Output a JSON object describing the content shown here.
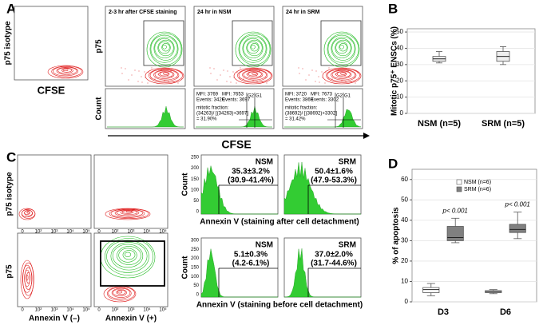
{
  "panels": {
    "A": {
      "label": "A",
      "isotype_ylabel": "p75 isotype",
      "isotype_xlabel": "CFSE",
      "ylabel_top": "p75",
      "ylabel_bottom": "Count",
      "gates": [
        "G2",
        "G1"
      ],
      "xlabel": "CFSE",
      "plots": [
        {
          "title": "2-3 hr after CFSE staining"
        },
        {
          "title": "24 hr in NSM",
          "stats": [
            "MFI: 3769",
            "Events: 3420",
            "MFI: 7653",
            "Events: 3697"
          ],
          "fraction": [
            "mitotic fraction:",
            "(34263)/ [(34263)+3697]",
            "= 31.90%"
          ]
        },
        {
          "title": "24 hr in SRM",
          "stats": [
            "MFI: 3720",
            "Events: 3869",
            "MFI: 7673",
            "Events: 3302"
          ],
          "fraction": [
            "mitotic fraction:",
            "(38692)/ [(38692)+3302]",
            "= 31.42%"
          ]
        }
      ]
    },
    "C": {
      "label": "C",
      "row_labels": [
        "p75 isotype",
        "p75"
      ],
      "col_labels": [
        "Annexin V (–)",
        "Annexin V (+)"
      ],
      "flow_ticks": [
        "0",
        "10²",
        "10³",
        "10⁴",
        "10⁵"
      ],
      "hist_ylabel": "Count",
      "hist_rows": [
        {
          "xlabel": "Annexin V (staining after cell detachment)",
          "yticks": [
            "250",
            "200",
            "150",
            "100",
            "50",
            "0"
          ],
          "cells": [
            {
              "name": "NSM",
              "mean": "35.3±3.2%",
              "range": "(30.9-41.4%)"
            },
            {
              "name": "SRM",
              "mean": "50.4±1.6%",
              "range": "(47.9-53.3%)"
            }
          ]
        },
        {
          "xlabel": "Annexin V (staining before cell detachment)",
          "yticks": [
            "300",
            "250",
            "200",
            "150",
            "100",
            "50",
            "0"
          ],
          "cells": [
            {
              "name": "NSM",
              "mean": "5.1±0.3%",
              "range": "(4.2-6.1%)"
            },
            {
              "name": "SRM",
              "mean": "37.0±2.0%",
              "range": "(31.7-44.6%)"
            }
          ]
        }
      ]
    }
  },
  "chart_data": [
    {
      "type": "box",
      "label": "B",
      "ylabel": "Mitotic p75⁺ ENSCs (%)",
      "categories": [
        "NSM (n=5)",
        "SRM (n=5)"
      ],
      "series": [
        {
          "color": "#eeeeee",
          "min": [
            31,
            30
          ],
          "q1": [
            32,
            32
          ],
          "median": [
            33.5,
            35
          ],
          "q3": [
            35,
            38
          ],
          "max": [
            38,
            41
          ]
        }
      ],
      "ylim": [
        0,
        52
      ],
      "yticks": [
        0,
        10,
        20,
        30,
        40,
        50
      ],
      "grid": true
    },
    {
      "type": "box",
      "label": "D",
      "ylabel": "% of apoptosis",
      "categories": [
        "D3",
        "D6"
      ],
      "series": [
        {
          "name": "NSM (n=6)",
          "color": "#ffffff",
          "min": [
            3,
            4
          ],
          "q1": [
            4.5,
            4.5
          ],
          "median": [
            6,
            5
          ],
          "q3": [
            7,
            5.5
          ],
          "max": [
            9,
            6
          ]
        },
        {
          "name": "SRM (n=6)",
          "color": "#808080",
          "min": [
            29,
            31
          ],
          "q1": [
            30,
            34
          ],
          "median": [
            31.5,
            35.5
          ],
          "q3": [
            37,
            38
          ],
          "max": [
            41,
            44
          ]
        }
      ],
      "annotations": [
        "p< 0.001",
        "p< 0.001"
      ],
      "ylim": [
        0,
        65
      ],
      "yticks": [
        0,
        10,
        20,
        30,
        40,
        50,
        60
      ],
      "grid": true,
      "legend": "top"
    }
  ]
}
